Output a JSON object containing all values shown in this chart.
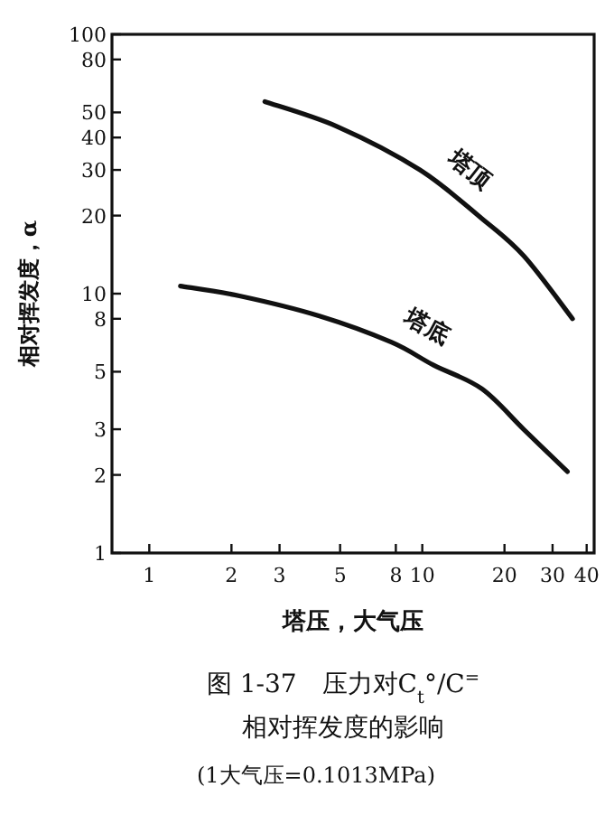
{
  "chart_data": {
    "type": "line",
    "log": "xy",
    "xlabel": "塔压，大气压",
    "ylabel": "相对挥发度，α",
    "annotations": [
      "图 1-37　压力对C$_{t}$°/C$^{=}$",
      "相对挥发度的影响",
      "(1大气压=0.1013MPa)"
    ],
    "xlim": [
      0.73,
      42.6
    ],
    "ylim": [
      1,
      100
    ],
    "xticks": [
      1,
      2,
      3,
      5,
      8,
      10,
      20,
      30,
      40
    ],
    "yticks": [
      1,
      2,
      3,
      5,
      8,
      10,
      20,
      30,
      40,
      50,
      80,
      100
    ],
    "series": [
      {
        "name": "塔顶",
        "color": "#111111",
        "x": [
          2.65,
          4.9,
          9.8,
          16.5,
          23.5,
          35.5
        ],
        "values": [
          55,
          44,
          30,
          19.5,
          14,
          8
        ]
      },
      {
        "name": "塔底",
        "color": "#111111",
        "x": [
          1.3,
          2.14,
          4.2,
          7.7,
          11,
          16.5,
          23.5,
          34
        ],
        "values": [
          10.7,
          9.8,
          8.2,
          6.5,
          5.3,
          4.3,
          3,
          2.06
        ]
      }
    ]
  }
}
